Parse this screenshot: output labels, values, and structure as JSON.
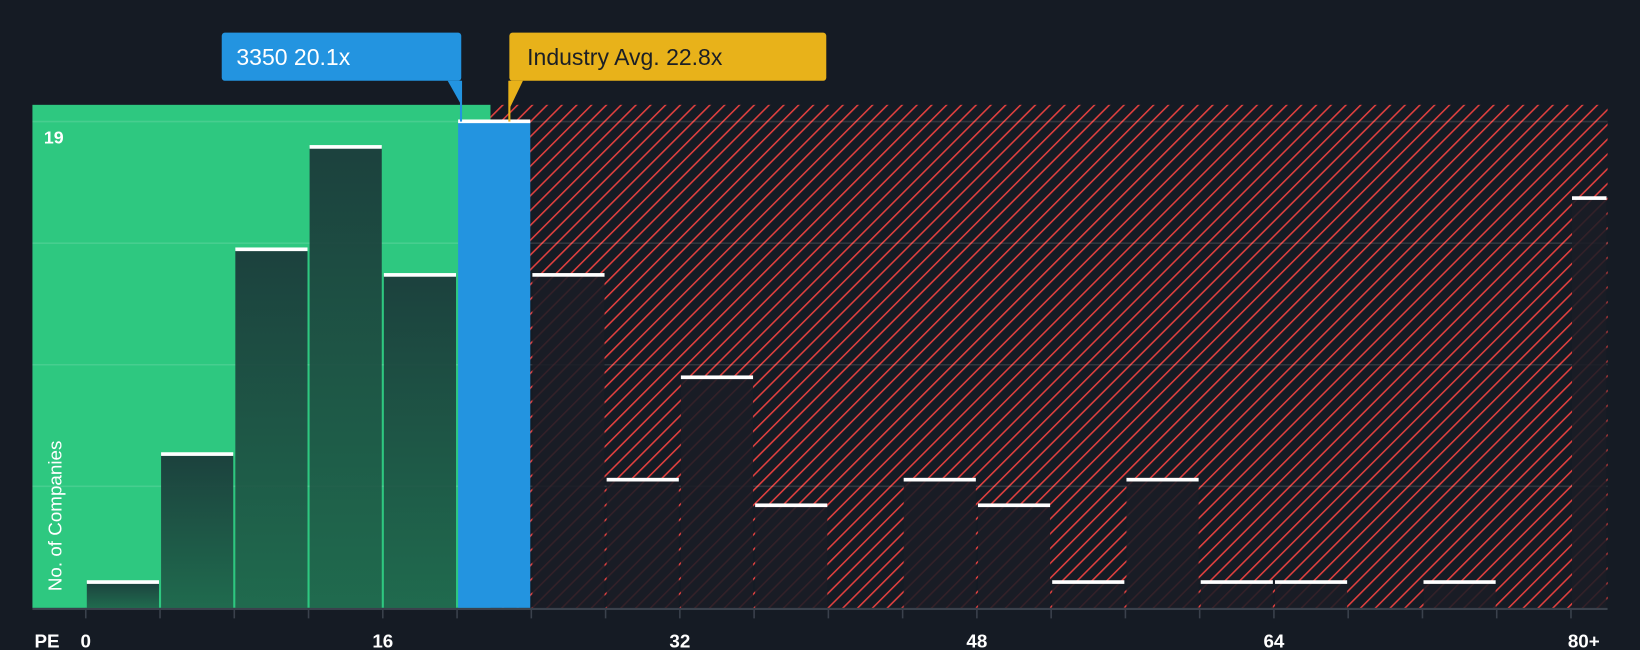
{
  "chart_data": {
    "type": "bar",
    "title": "",
    "xlabel": "PE",
    "ylabel": "No. of Companies",
    "x_tick_labels": [
      "0",
      "16",
      "32",
      "48",
      "64",
      "80+"
    ],
    "y_top_label": "19",
    "ylim": [
      0,
      19
    ],
    "bin_width": 4,
    "bins": [
      {
        "from": 0,
        "to": 4,
        "value": 1
      },
      {
        "from": 4,
        "to": 8,
        "value": 6
      },
      {
        "from": 8,
        "to": 12,
        "value": 14
      },
      {
        "from": 12,
        "to": 16,
        "value": 18
      },
      {
        "from": 16,
        "to": 20,
        "value": 13
      },
      {
        "from": 20,
        "to": 24,
        "value": 19,
        "highlight": true
      },
      {
        "from": 24,
        "to": 28,
        "value": 13
      },
      {
        "from": 28,
        "to": 32,
        "value": 5
      },
      {
        "from": 32,
        "to": 36,
        "value": 9
      },
      {
        "from": 36,
        "to": 40,
        "value": 4
      },
      {
        "from": 40,
        "to": 44,
        "value": 0
      },
      {
        "from": 44,
        "to": 48,
        "value": 5
      },
      {
        "from": 48,
        "to": 52,
        "value": 4
      },
      {
        "from": 52,
        "to": 56,
        "value": 1
      },
      {
        "from": 56,
        "to": 60,
        "value": 5
      },
      {
        "from": 60,
        "to": 64,
        "value": 1
      },
      {
        "from": 64,
        "to": 68,
        "value": 1
      },
      {
        "from": 68,
        "to": 72,
        "value": 0
      },
      {
        "from": 72,
        "to": 76,
        "value": 1
      },
      {
        "from": 76,
        "to": 80,
        "value": 0
      },
      {
        "from": 80,
        "to": 82,
        "value": 16,
        "label": "80+"
      }
    ],
    "company": {
      "label": "3350 20.1x",
      "value": 20.1
    },
    "industry_avg": {
      "label": "Industry Avg. 22.8x",
      "value": 22.8
    },
    "fair_zone_end": 21.8,
    "colors": {
      "background": "#151b24",
      "good_zone": "#2ec880",
      "bad_hatch": "#e0403f",
      "company": "#2394e0",
      "industry": "#e8b21a"
    }
  }
}
